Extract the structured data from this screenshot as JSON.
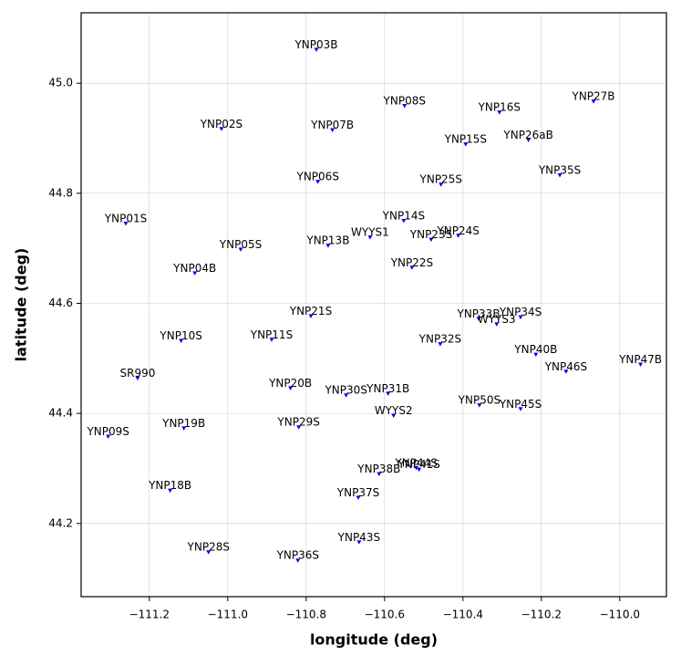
{
  "chart_data": {
    "type": "scatter",
    "xlabel": "longitude (deg)",
    "ylabel": "latitude (deg)",
    "color": "#0000ff",
    "grid": true,
    "xlim": [
      -111.374,
      -109.881
    ],
    "ylim": [
      44.067,
      45.128
    ],
    "xticks": [
      {
        "value": -111.2,
        "label": "−111.2"
      },
      {
        "value": -111.0,
        "label": "−111.0"
      },
      {
        "value": -110.8,
        "label": "−110.8"
      },
      {
        "value": -110.6,
        "label": "−110.6"
      },
      {
        "value": -110.4,
        "label": "−110.4"
      },
      {
        "value": -110.2,
        "label": "−110.2"
      },
      {
        "value": -110.0,
        "label": "−110.0"
      }
    ],
    "yticks": [
      44.2,
      44.4,
      44.6,
      44.8,
      {
        "value": 45.0,
        "label": "45.0"
      }
    ],
    "labels": [
      "YNP03B",
      "YNP08S",
      "YNP16S",
      "YNP27B",
      "YNP02S",
      "YNP07B",
      "YNP15S",
      "YNP26aB",
      "YNP35S",
      "YNP06S",
      "YNP25S",
      "YNP01S",
      "YNP14S",
      "YNP24S",
      "YNP23S",
      "WYYS1",
      "YNP13B",
      "YNP05S",
      "YNP04B",
      "YNP22S",
      "YNP21S",
      "YNP33B",
      "YNP34S",
      "WYYS3",
      "YNP10S",
      "YNP11S",
      "YNP32S",
      "YNP40B",
      "YNP47B",
      "YNP46S",
      "SR990",
      "YNP20B",
      "YNP30S",
      "YNP31B",
      "WYYS2",
      "YNP50S",
      "YNP45S",
      "YNP19B",
      "YNP29S",
      "YNP09S",
      "YNP44S",
      "YNP41S",
      "YNP38B",
      "YNP18B",
      "YNP37S",
      "YNP43S",
      "YNP28S",
      "YNP36S"
    ],
    "x": [
      -110.774,
      -110.549,
      -110.307,
      -110.067,
      -111.016,
      -110.733,
      -110.393,
      -110.233,
      -110.153,
      -110.77,
      -110.456,
      -111.26,
      -110.551,
      -110.412,
      -110.481,
      -110.637,
      -110.744,
      -110.967,
      -111.084,
      -110.53,
      -110.788,
      -110.36,
      -110.253,
      -110.314,
      -111.119,
      -110.888,
      -110.458,
      -110.214,
      -109.947,
      -110.137,
      -111.23,
      -110.84,
      -110.698,
      -110.591,
      -110.577,
      -110.358,
      -110.253,
      -111.112,
      -110.819,
      -111.305,
      -110.519,
      -110.512,
      -110.614,
      -111.147,
      -110.667,
      -110.665,
      -111.049,
      -110.821
    ],
    "y": [
      45.061,
      44.959,
      44.947,
      44.967,
      44.917,
      44.915,
      44.889,
      44.897,
      44.833,
      44.821,
      44.816,
      44.745,
      44.75,
      44.723,
      44.716,
      44.72,
      44.705,
      44.698,
      44.655,
      44.665,
      44.577,
      44.572,
      44.575,
      44.562,
      44.532,
      44.534,
      44.526,
      44.507,
      44.489,
      44.476,
      44.464,
      44.446,
      44.433,
      44.436,
      44.396,
      44.415,
      44.408,
      44.373,
      44.375,
      44.358,
      44.301,
      44.298,
      44.29,
      44.26,
      44.247,
      44.166,
      44.148,
      44.133
    ]
  }
}
